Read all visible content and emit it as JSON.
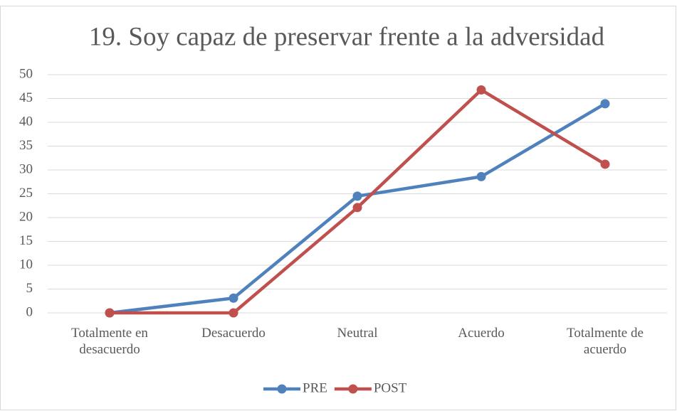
{
  "chart_data": {
    "type": "line",
    "title": "19. Soy capaz de preservar frente a la adversidad",
    "categories": [
      "Totalmente en desacuerdo",
      "Desacuerdo",
      "Neutral",
      "Acuerdo",
      "Totalmente de acuerdo"
    ],
    "series": [
      {
        "name": "PRE",
        "color": "#4f81bd",
        "values": [
          0,
          3.1,
          24.5,
          28.6,
          43.9
        ]
      },
      {
        "name": "POST",
        "color": "#c0504d",
        "values": [
          0,
          0,
          22.1,
          46.8,
          31.2
        ]
      }
    ],
    "ylim": [
      0,
      50
    ],
    "yticks": [
      0,
      5,
      10,
      15,
      20,
      25,
      30,
      35,
      40,
      45,
      50
    ],
    "grid": true,
    "legend": "bottom"
  }
}
